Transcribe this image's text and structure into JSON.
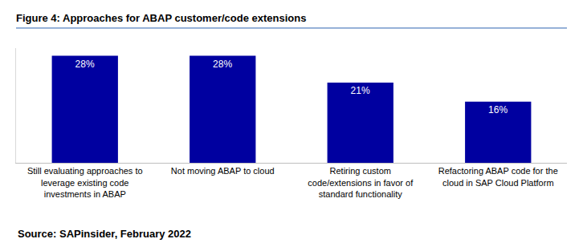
{
  "chart_data": {
    "type": "bar",
    "title": "Figure 4: Approaches for ABAP customer/code extensions",
    "source": "Source: SAPinsider, February 2022",
    "categories": [
      "Still evaluating approaches to leverage existing code investments in ABAP",
      "Not moving ABAP to cloud",
      "Retiring custom code/extensions in favor of standard functionality",
      "Refactoring ABAP code for the cloud in SAP Cloud Platform"
    ],
    "values": [
      28,
      28,
      21,
      16
    ],
    "value_labels": [
      "28%",
      "28%",
      "21%",
      "16%"
    ],
    "data_labels": true,
    "color": "#0000a0",
    "ylim": [
      0,
      30
    ],
    "yticks": [],
    "tick_labels": "x",
    "grid": false
  }
}
